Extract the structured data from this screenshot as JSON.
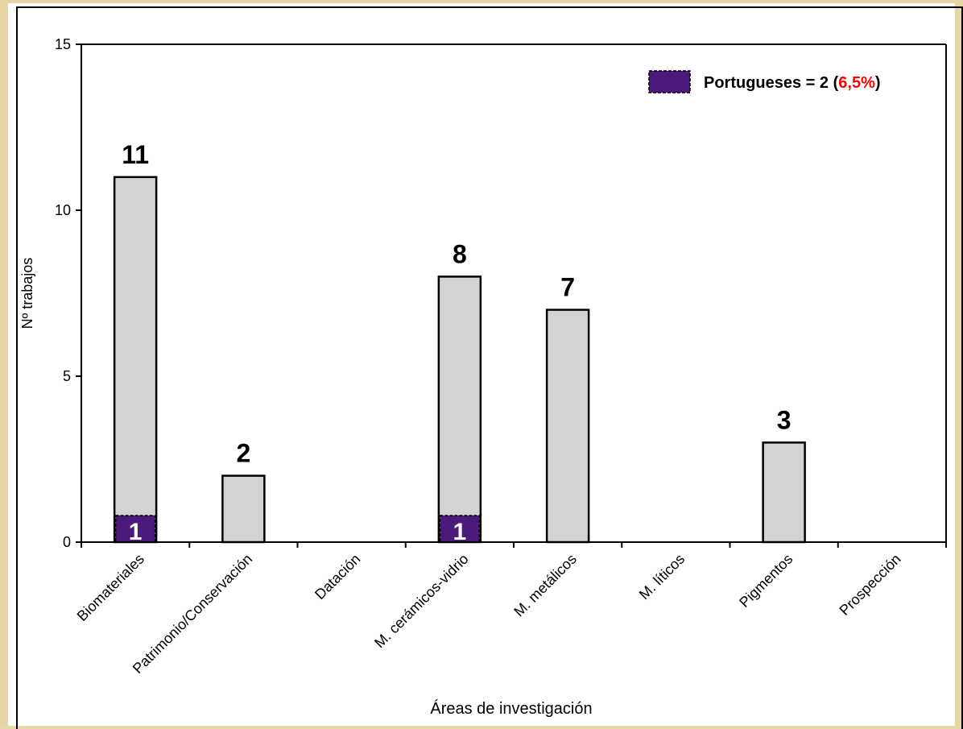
{
  "chart_data": {
    "type": "bar",
    "xlabel": "Áreas de investigación",
    "ylabel": "Nº  trabajos",
    "ylim": [
      0,
      15
    ],
    "yticks": [
      0,
      5,
      10,
      15
    ],
    "categories": [
      "Biomateriales",
      "Patrimonio/Conservación",
      "Datación",
      "M. cerámicos-vidrio",
      "M. metálicos",
      "M. líticos",
      "Pigmentos",
      "Prospección"
    ],
    "series": [
      {
        "values": [
          11,
          2,
          0,
          8,
          7,
          0,
          3,
          0
        ],
        "color": "#d3d3d3"
      },
      {
        "name": "Portugueses",
        "values": [
          1,
          0,
          0,
          1,
          0,
          0,
          0,
          0
        ],
        "color": "#4b1a7a"
      }
    ],
    "data_labels": [
      "11",
      "2",
      "",
      "8",
      "7",
      "",
      "3",
      ""
    ],
    "sub_labels": [
      "1",
      "",
      "",
      "1",
      "",
      "",
      "",
      ""
    ],
    "legend": {
      "position": "top-right",
      "prefix": "Portugueses = 2 (",
      "highlight": "6,5%",
      "suffix": ")",
      "highlight_color": "#ff0000"
    },
    "grid": false
  }
}
